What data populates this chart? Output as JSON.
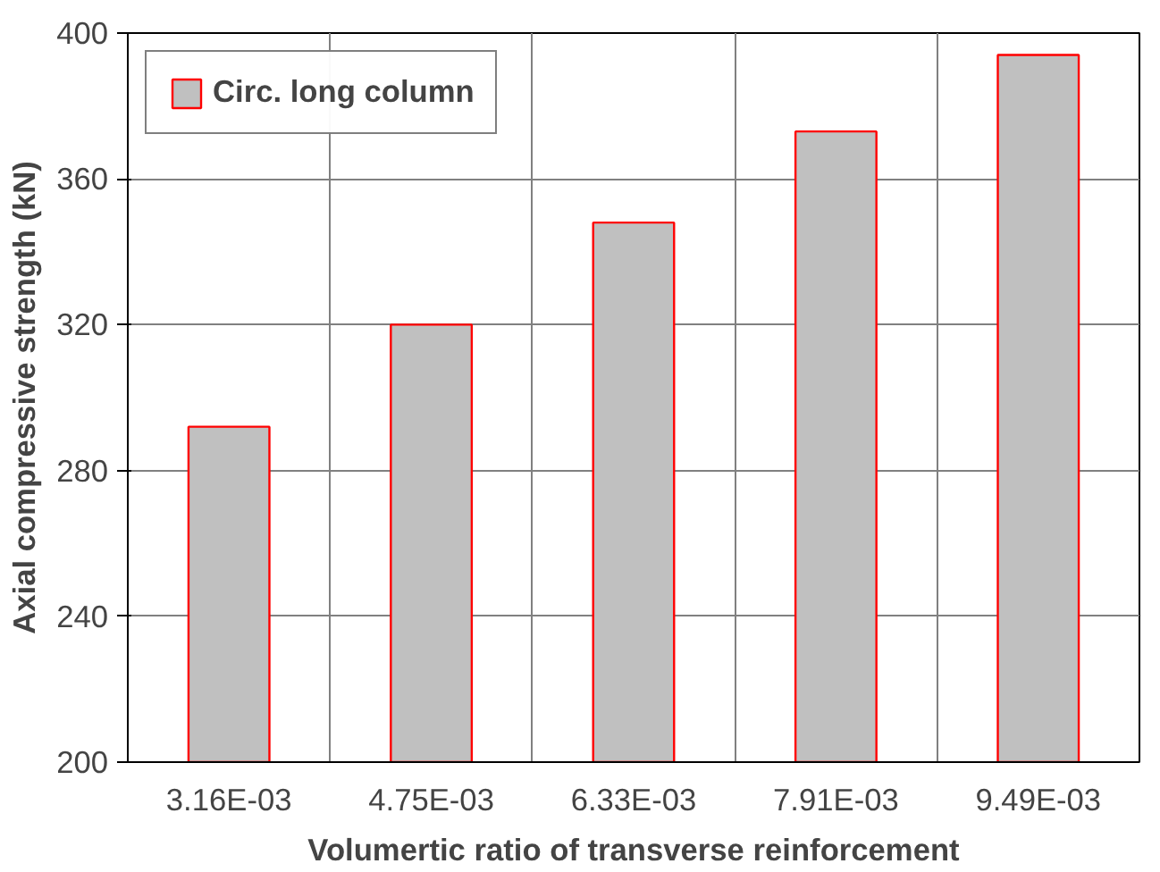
{
  "chart_data": {
    "type": "bar",
    "xlabel": "Volumertic ratio of transverse reinforcement",
    "ylabel": "Axial compressive strength (kN)",
    "categories": [
      "3.16E-03",
      "4.75E-03",
      "6.33E-03",
      "7.91E-03",
      "9.49E-03"
    ],
    "series": [
      {
        "name": "Circ. long column",
        "color": "#c0c0c0",
        "values": [
          292,
          320,
          348,
          373,
          394
        ]
      }
    ],
    "ylim": [
      200,
      400
    ],
    "yticks": [
      200,
      240,
      280,
      320,
      360,
      400
    ],
    "grid": true,
    "legend": "top left"
  }
}
